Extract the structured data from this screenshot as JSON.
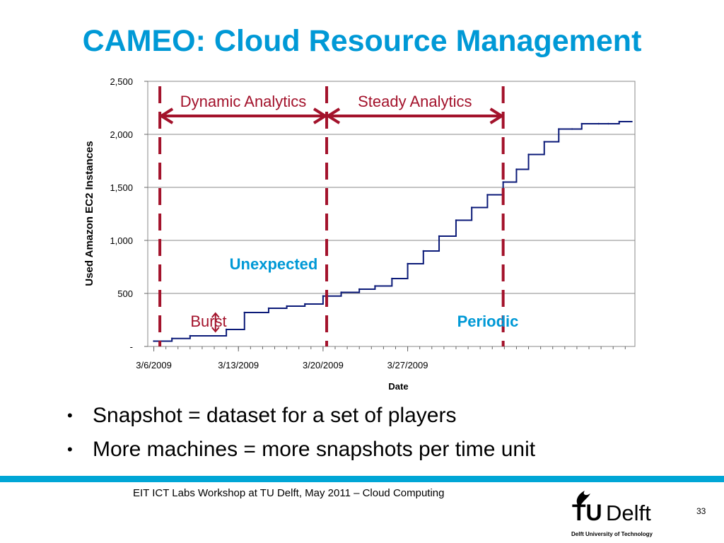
{
  "slide": {
    "title": "CAMEO: Cloud Resource Management",
    "bullets": [
      "Snapshot = dataset for a set of players",
      "More machines = more snapshots per time unit"
    ],
    "bullet_symbol": "•",
    "footer": "EIT ICT Labs Workshop at TU Delft, May 2011 – Cloud Computing",
    "page_number": "33",
    "logo": {
      "text_tu": "TU",
      "text_delft": "Delft",
      "subtitle": "Delft University of Technology"
    }
  },
  "annotations": {
    "dynamic": "Dynamic Analytics",
    "steady": "Steady Analytics",
    "unexpected": "Unexpected",
    "burst": "Burst",
    "periodic": "Periodic"
  },
  "colors": {
    "title": "#0099d6",
    "annotation_red": "#a3122b",
    "annotation_blue": "#0099d6",
    "series_line": "#0b1a78",
    "footer_bar": "#00a6d6"
  },
  "chart_data": {
    "type": "line",
    "step": true,
    "xlabel": "Date",
    "ylabel": "Used Amazon EC2 Instances",
    "x_unit": "days since 3/6/2009",
    "xlim": [
      -0.5,
      39.8
    ],
    "ylim": [
      0,
      2500
    ],
    "y_ticks": [
      {
        "v": 0,
        "label": "-"
      },
      {
        "v": 500,
        "label": "500"
      },
      {
        "v": 1000,
        "label": "1,000"
      },
      {
        "v": 1500,
        "label": "1,500"
      },
      {
        "v": 2000,
        "label": "2,000"
      },
      {
        "v": 2500,
        "label": "2,500"
      }
    ],
    "x_ticks": [
      {
        "v": 0,
        "label": "3/6/2009"
      },
      {
        "v": 7,
        "label": "3/13/2009"
      },
      {
        "v": 14,
        "label": "3/20/2009"
      },
      {
        "v": 21,
        "label": "3/27/2009"
      }
    ],
    "grid": "horizontal",
    "series": [
      {
        "name": "",
        "x": [
          0,
          1.5,
          3,
          6,
          7.5,
          9.5,
          11,
          12.5,
          14,
          15.5,
          17,
          18.3,
          19.7,
          21,
          22.3,
          23.6,
          25,
          26.3,
          27.6,
          28.9,
          30,
          31,
          32.3,
          33.5,
          34.6,
          35.4,
          36.8,
          37.6,
          38.5
        ],
        "y": [
          50,
          75,
          100,
          160,
          320,
          360,
          380,
          400,
          475,
          510,
          540,
          570,
          640,
          780,
          900,
          1040,
          1190,
          1310,
          1430,
          1550,
          1670,
          1810,
          1930,
          2050,
          2050,
          2100,
          2100,
          2100,
          2120
        ]
      }
    ],
    "phase_lines_x": [
      0.5,
      14.3,
      28.9
    ],
    "burst_range": [
      160,
      320
    ]
  }
}
